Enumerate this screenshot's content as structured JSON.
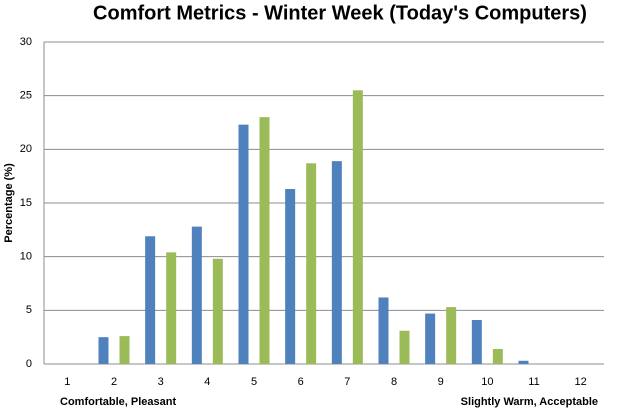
{
  "chart_data": {
    "type": "bar",
    "title": "Comfort Metrics - Winter Week (Today's Computers)",
    "y_label": "Percentage (%)",
    "annotations": [
      "Comfortable, Pleasant",
      "Slightly Warm, Acceptable"
    ],
    "categories": [
      "1",
      "2",
      "3",
      "4",
      "5",
      "6",
      "7",
      "8",
      "9",
      "10",
      "11",
      "12"
    ],
    "series": [
      {
        "color": "#4f81bd",
        "values": [
          0,
          2.5,
          11.9,
          12.8,
          22.3,
          16.3,
          18.9,
          6.2,
          4.7,
          4.1,
          0.3,
          0
        ]
      },
      {
        "color": "#9bbb59",
        "values": [
          0,
          2.6,
          10.4,
          9.8,
          23.0,
          18.7,
          25.5,
          3.1,
          5.3,
          1.4,
          0,
          0
        ]
      }
    ],
    "ylim": [
      0,
      30
    ],
    "yticks": [
      0,
      5,
      10,
      15,
      20,
      25,
      30
    ],
    "grid": true
  }
}
